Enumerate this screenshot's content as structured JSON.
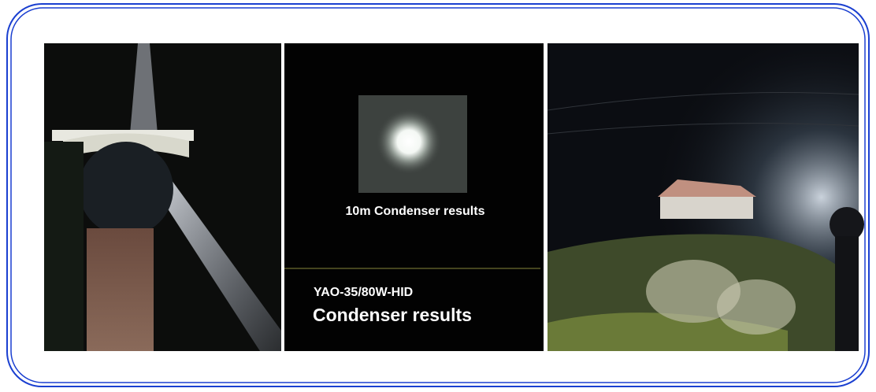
{
  "center_panel": {
    "caption": "10m Condenser results",
    "model": "YAO-35/80W-HID",
    "subtitle": "Condenser results"
  }
}
